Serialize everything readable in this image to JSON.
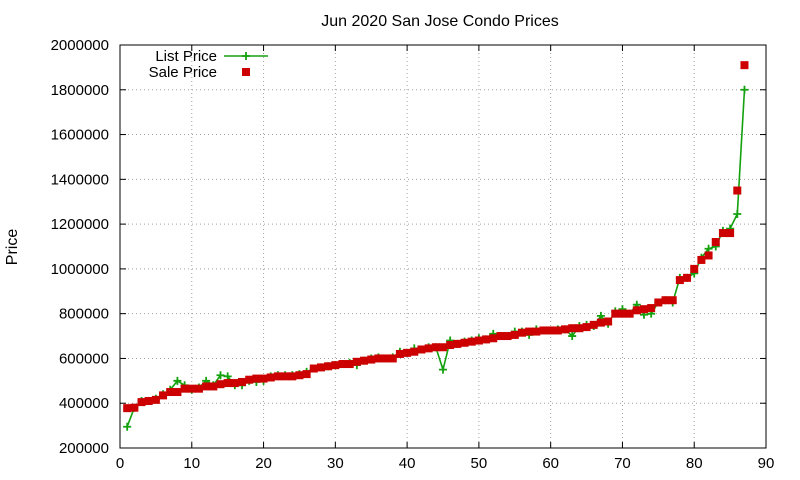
{
  "chart_data": {
    "type": "line",
    "title": "Jun 2020 San Jose Condo Prices",
    "xlabel": "",
    "ylabel": "Price",
    "xlim": [
      0,
      90
    ],
    "ylim": [
      200000,
      2000000
    ],
    "x_ticks": [
      0,
      10,
      20,
      30,
      40,
      50,
      60,
      70,
      80,
      90
    ],
    "y_ticks": [
      200000,
      400000,
      600000,
      800000,
      1000000,
      1200000,
      1400000,
      1600000,
      1800000,
      2000000
    ],
    "grid": true,
    "legend_position": "top-left",
    "series": [
      {
        "name": "List Price",
        "style": "linespoints",
        "marker": "plus",
        "color": "#13a10e",
        "x": [
          1,
          2,
          3,
          4,
          5,
          6,
          7,
          8,
          9,
          10,
          11,
          12,
          13,
          14,
          15,
          16,
          17,
          18,
          19,
          20,
          21,
          22,
          23,
          24,
          25,
          26,
          27,
          28,
          29,
          30,
          31,
          32,
          33,
          34,
          35,
          36,
          37,
          38,
          39,
          40,
          41,
          42,
          43,
          44,
          45,
          46,
          47,
          48,
          49,
          50,
          51,
          52,
          53,
          54,
          55,
          56,
          57,
          58,
          59,
          60,
          61,
          62,
          63,
          64,
          65,
          66,
          67,
          68,
          69,
          70,
          71,
          72,
          73,
          74,
          75,
          76,
          77,
          78,
          79,
          80,
          81,
          82,
          83,
          84,
          85,
          86,
          87
        ],
        "y": [
          295000,
          380000,
          410000,
          410000,
          420000,
          440000,
          460000,
          500000,
          480000,
          460000,
          470000,
          500000,
          480000,
          525000,
          520000,
          480000,
          480000,
          500000,
          495000,
          500000,
          520000,
          525000,
          525000,
          525000,
          530000,
          540000,
          555000,
          560000,
          565000,
          570000,
          575000,
          580000,
          570000,
          590000,
          600000,
          605000,
          600000,
          605000,
          630000,
          625000,
          645000,
          640000,
          650000,
          650000,
          550000,
          680000,
          665000,
          675000,
          680000,
          690000,
          685000,
          710000,
          700000,
          700000,
          720000,
          720000,
          705000,
          730000,
          725000,
          725000,
          730000,
          730000,
          700000,
          745000,
          750000,
          745000,
          790000,
          755000,
          810000,
          820000,
          800000,
          840000,
          795000,
          800000,
          850000,
          860000,
          850000,
          960000,
          960000,
          980000,
          1050000,
          1090000,
          1100000,
          1170000,
          1180000,
          1245000,
          1800000
        ]
      },
      {
        "name": "Sale Price",
        "style": "points",
        "marker": "square",
        "color": "#cc0000",
        "x": [
          1,
          2,
          3,
          4,
          5,
          6,
          7,
          8,
          9,
          10,
          11,
          12,
          13,
          14,
          15,
          16,
          17,
          18,
          19,
          20,
          21,
          22,
          23,
          24,
          25,
          26,
          27,
          28,
          29,
          30,
          31,
          32,
          33,
          34,
          35,
          36,
          37,
          38,
          39,
          40,
          41,
          42,
          43,
          44,
          45,
          46,
          47,
          48,
          49,
          50,
          51,
          52,
          53,
          54,
          55,
          56,
          57,
          58,
          59,
          60,
          61,
          62,
          63,
          64,
          65,
          66,
          67,
          68,
          69,
          70,
          71,
          72,
          73,
          74,
          75,
          76,
          77,
          78,
          79,
          80,
          81,
          82,
          83,
          84,
          85,
          86,
          87
        ],
        "y": [
          378000,
          380000,
          405000,
          410000,
          415000,
          435000,
          450000,
          450000,
          465000,
          465000,
          465000,
          475000,
          475000,
          485000,
          490000,
          490000,
          495000,
          505000,
          510000,
          510000,
          515000,
          520000,
          520000,
          520000,
          525000,
          530000,
          555000,
          560000,
          565000,
          570000,
          575000,
          575000,
          585000,
          590000,
          595000,
          600000,
          600000,
          600000,
          620000,
          625000,
          630000,
          640000,
          645000,
          650000,
          650000,
          660000,
          665000,
          670000,
          675000,
          680000,
          685000,
          690000,
          700000,
          700000,
          705000,
          715000,
          720000,
          720000,
          725000,
          725000,
          725000,
          730000,
          735000,
          735000,
          740000,
          750000,
          760000,
          765000,
          800000,
          800000,
          800000,
          815000,
          820000,
          825000,
          850000,
          860000,
          860000,
          950000,
          960000,
          1000000,
          1040000,
          1060000,
          1120000,
          1160000,
          1160000,
          1350000,
          1910000
        ]
      }
    ]
  }
}
